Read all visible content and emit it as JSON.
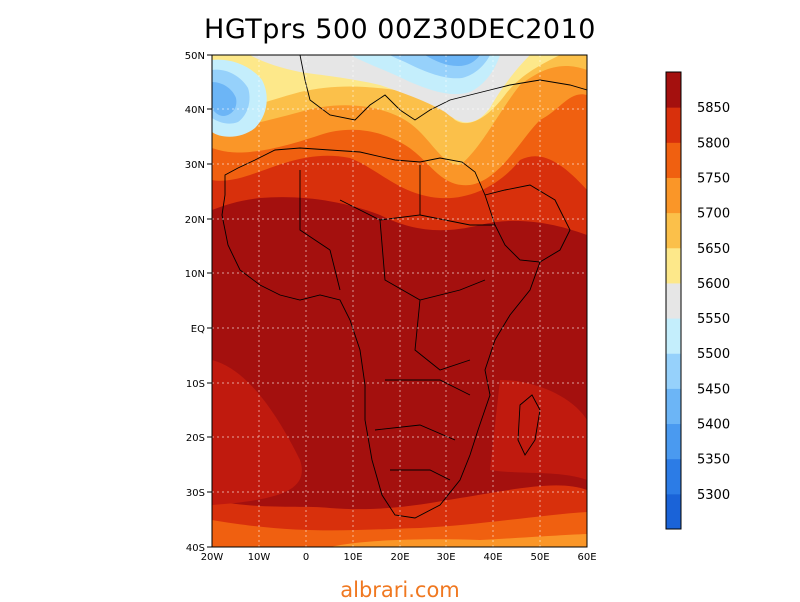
{
  "title": "HGTprs 500 00Z30DEC2010",
  "watermark": "albrari.com",
  "lat_labels": [
    "50N",
    "40N",
    "30N",
    "20N",
    "10N",
    "EQ",
    "10S",
    "20S",
    "30S",
    "40S"
  ],
  "lon_labels": [
    "20W",
    "10W",
    "0",
    "10E",
    "20E",
    "30E",
    "40E",
    "50E",
    "60E"
  ],
  "colorbar": {
    "labels": [
      "5850",
      "5800",
      "5750",
      "5700",
      "5650",
      "5600",
      "5550",
      "5500",
      "5450",
      "5400",
      "5350",
      "5300"
    ],
    "colors": [
      "#1a63d8",
      "#2c7ce6",
      "#4a9af0",
      "#6cb5f6",
      "#96d1fb",
      "#c4eefc",
      "#e6e6e6",
      "#fde88a",
      "#fbc04a",
      "#fa9628",
      "#f06010",
      "#d8300c",
      "#a4100e"
    ]
  }
}
